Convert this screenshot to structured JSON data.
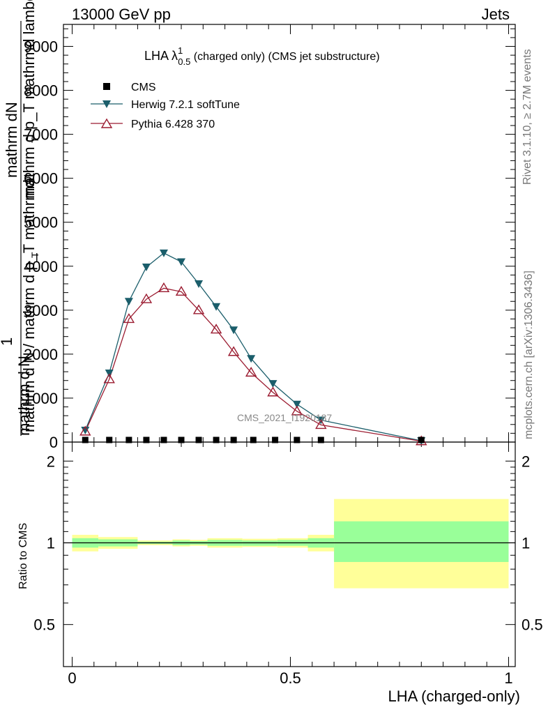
{
  "header": {
    "left": "13000 GeV pp",
    "right": "Jets"
  },
  "side": {
    "rivet": "Rivet 3.1.10, ≥ 2.7M events",
    "mcplots": "mcplots.cern.ch [arXiv:1306.3436]"
  },
  "plot_title": {
    "main": "LHA λ",
    "sup": "1",
    "sub": "0.5",
    "rest": " (charged only) (CMS jet substructure)"
  },
  "watermark": "CMS_2021_I1920187",
  "ylabel_main": {
    "numer": "mathrm dN",
    "numer2": "mathrm d p_T mathrmd lambda",
    "numer3": "T",
    "one": "1",
    "denom": "mathrm d N / mathrm d p_T mathrmd",
    "denom2": "T",
    "denom3": "mathrm d N"
  },
  "ylabel_ratio": "Ratio to CMS",
  "xlabel": "LHA (charged-only)",
  "colors": {
    "herwig": "#1b5e6b",
    "pythia": "#9b1b30",
    "band_inner": "#99ff99",
    "band_outer": "#ffff99"
  },
  "chart_data": [
    {
      "type": "line",
      "x": [
        0.03,
        0.085,
        0.13,
        0.17,
        0.21,
        0.25,
        0.29,
        0.33,
        0.37,
        0.41,
        0.46,
        0.515,
        0.57,
        0.8
      ],
      "xlim": [
        -0.02,
        1.0
      ],
      "ylim": [
        0,
        9500
      ],
      "yticks": [
        0,
        1000,
        2000,
        3000,
        4000,
        5000,
        6000,
        7000,
        8000,
        9000
      ],
      "ytick_labels": [
        "0",
        "1000",
        "2000",
        "3000",
        "4000",
        "5000",
        "6000",
        "7000",
        "8000",
        "9000"
      ],
      "legend": [
        "CMS",
        "Herwig 7.2.1 softTune",
        "Pythia 6.428 370"
      ],
      "series": [
        {
          "name": "CMS",
          "marker": "square",
          "x": [
            0.03,
            0.085,
            0.13,
            0.17,
            0.21,
            0.25,
            0.29,
            0.33,
            0.37,
            0.415,
            0.465,
            0.515,
            0.57,
            0.8
          ],
          "values": [
            8,
            8,
            8,
            8,
            8,
            8,
            8,
            8,
            8,
            8,
            8,
            8,
            8,
            8
          ]
        },
        {
          "name": "Herwig 7.2.1 softTune",
          "marker": "triangle-down",
          "values": [
            270,
            1570,
            3200,
            3980,
            4300,
            4100,
            3600,
            3080,
            2550,
            1900,
            1330,
            860,
            500,
            30
          ]
        },
        {
          "name": "Pythia 6.428 370",
          "marker": "triangle-up",
          "values": [
            240,
            1430,
            2800,
            3250,
            3500,
            3420,
            3000,
            2560,
            2050,
            1580,
            1130,
            700,
            390,
            20
          ]
        }
      ]
    },
    {
      "type": "area",
      "name": "ratio",
      "ylabel": "Ratio to CMS",
      "xlim": [
        -0.02,
        1.0
      ],
      "ylim": [
        0.35,
        2.35
      ],
      "yticks": [
        0.5,
        1,
        2
      ],
      "ytick_labels": [
        "0.5",
        "1",
        "2"
      ],
      "xticks": [
        0,
        0.5,
        1
      ],
      "xtick_labels": [
        "0",
        "0.5",
        "1"
      ],
      "bins": [
        {
          "lo": 0.0,
          "hi": 0.06,
          "inner": [
            0.96,
            1.04
          ],
          "outer": [
            0.93,
            1.07
          ]
        },
        {
          "lo": 0.06,
          "hi": 0.15,
          "inner": [
            0.97,
            1.03
          ],
          "outer": [
            0.95,
            1.05
          ]
        },
        {
          "lo": 0.15,
          "hi": 0.23,
          "inner": [
            0.99,
            1.01
          ],
          "outer": [
            0.98,
            1.02
          ]
        },
        {
          "lo": 0.23,
          "hi": 0.27,
          "inner": [
            0.98,
            1.02
          ],
          "outer": [
            0.97,
            1.03
          ]
        },
        {
          "lo": 0.27,
          "hi": 0.31,
          "inner": [
            0.985,
            1.015
          ],
          "outer": [
            0.975,
            1.025
          ]
        },
        {
          "lo": 0.31,
          "hi": 0.39,
          "inner": [
            0.975,
            1.025
          ],
          "outer": [
            0.96,
            1.04
          ]
        },
        {
          "lo": 0.39,
          "hi": 0.47,
          "inner": [
            0.975,
            1.02
          ],
          "outer": [
            0.965,
            1.035
          ]
        },
        {
          "lo": 0.47,
          "hi": 0.54,
          "inner": [
            0.975,
            1.025
          ],
          "outer": [
            0.96,
            1.04
          ]
        },
        {
          "lo": 0.54,
          "hi": 0.6,
          "inner": [
            0.96,
            1.04
          ],
          "outer": [
            0.93,
            1.07
          ]
        },
        {
          "lo": 0.6,
          "hi": 1.0,
          "inner": [
            0.85,
            1.2
          ],
          "outer": [
            0.68,
            1.45
          ]
        }
      ]
    }
  ]
}
